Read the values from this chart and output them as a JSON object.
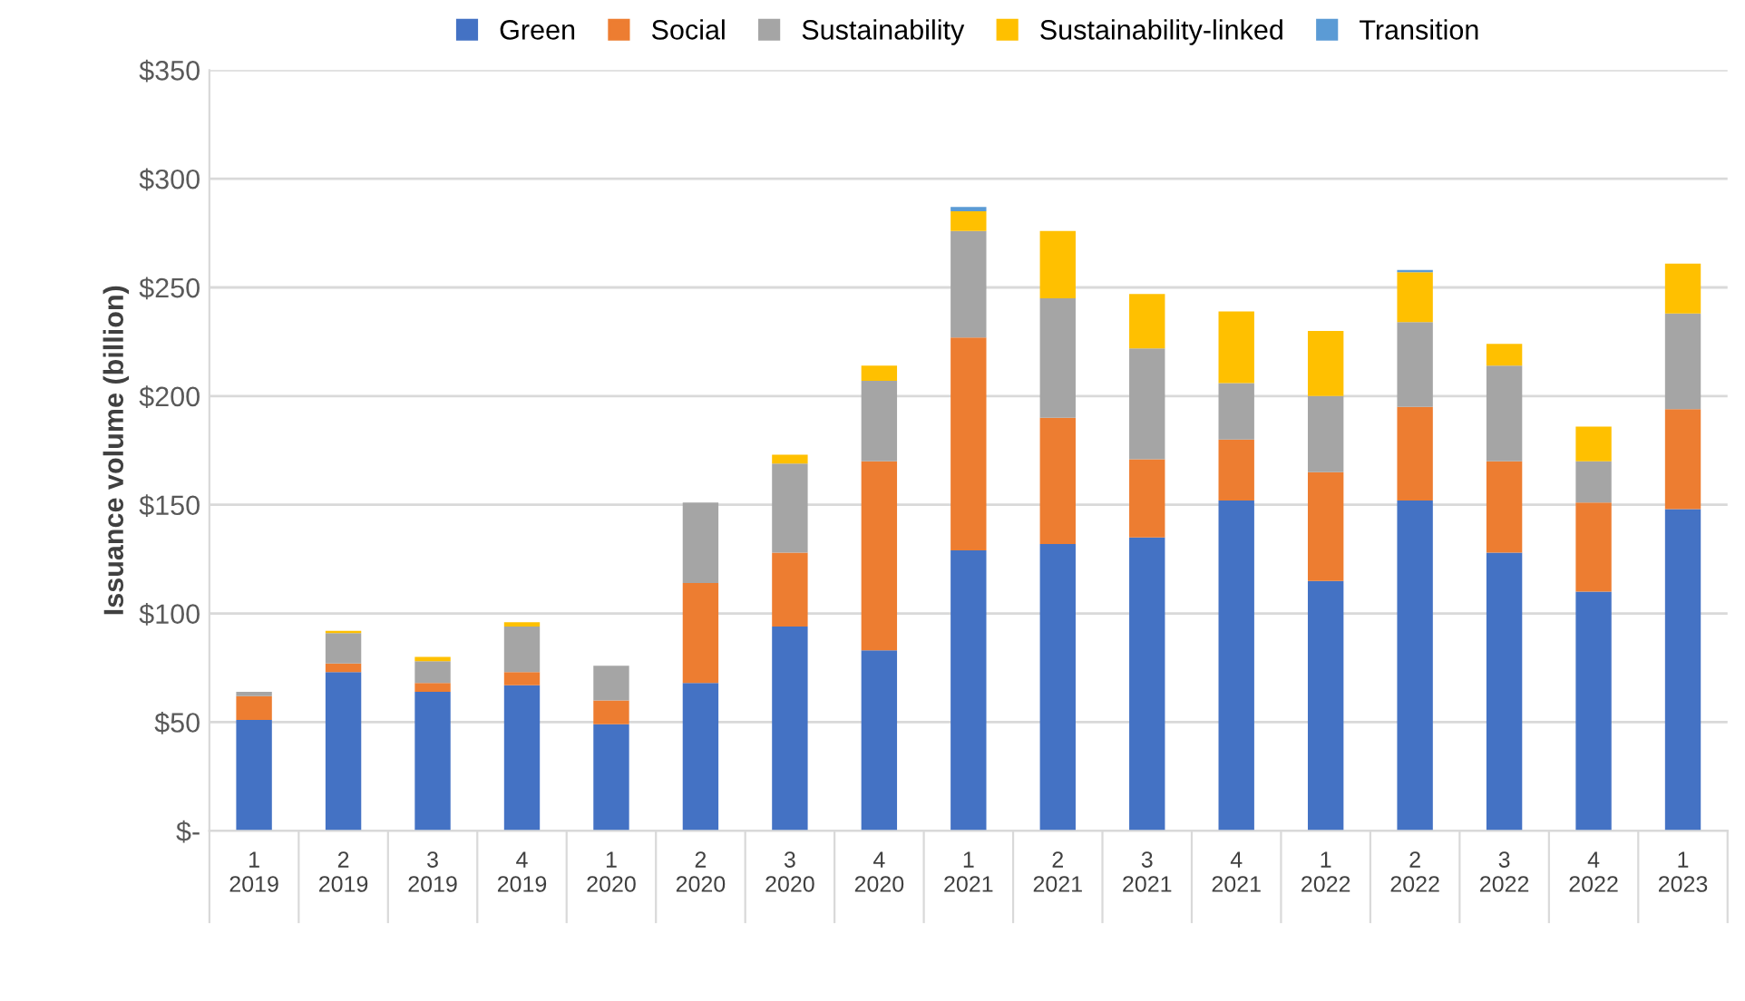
{
  "chart_data": {
    "type": "bar",
    "stacked": true,
    "ylabel": "Issuance volume (billion)",
    "categories": [
      "1\n2019",
      "2\n2019",
      "3\n2019",
      "4\n2019",
      "1\n2020",
      "2\n2020",
      "3\n2020",
      "4\n2020",
      "1\n2021",
      "2\n2021",
      "3\n2021",
      "4\n2021",
      "1\n2022",
      "2\n2022",
      "3\n2022",
      "4\n2022",
      "1\n2023"
    ],
    "series": [
      {
        "name": "Green",
        "color": "#4472c4",
        "values": [
          51,
          73,
          64,
          67,
          49,
          68,
          94,
          83,
          129,
          132,
          135,
          152,
          115,
          152,
          128,
          110,
          148
        ]
      },
      {
        "name": "Social",
        "color": "#ed7d31",
        "values": [
          11,
          4,
          4,
          6,
          11,
          46,
          34,
          87,
          98,
          58,
          36,
          28,
          50,
          43,
          42,
          41,
          46
        ]
      },
      {
        "name": "Sustainability",
        "color": "#a5a5a5",
        "values": [
          2,
          14,
          10,
          21,
          16,
          37,
          41,
          37,
          49,
          55,
          51,
          26,
          35,
          39,
          44,
          19,
          44
        ]
      },
      {
        "name": "Sustainability-linked",
        "color": "#ffc000",
        "values": [
          null,
          1,
          2,
          2,
          null,
          null,
          4,
          7,
          9,
          31,
          25,
          33,
          30,
          23,
          10,
          16,
          23
        ]
      },
      {
        "name": "Transition",
        "color": "#5b9bd5",
        "values": [
          null,
          null,
          null,
          null,
          null,
          null,
          null,
          null,
          2,
          null,
          null,
          null,
          null,
          1,
          null,
          null,
          null
        ]
      }
    ],
    "ylim": [
      0,
      350
    ],
    "yticks": [
      {
        "value": 0,
        "label": "$-"
      },
      {
        "value": 50,
        "label": "$50"
      },
      {
        "value": 100,
        "label": "$100"
      },
      {
        "value": 150,
        "label": "$150"
      },
      {
        "value": 200,
        "label": "$200"
      },
      {
        "value": 250,
        "label": "$250"
      },
      {
        "value": 300,
        "label": "$300"
      },
      {
        "value": 350,
        "label": "$350"
      }
    ],
    "grid": "y",
    "legend": "top"
  }
}
